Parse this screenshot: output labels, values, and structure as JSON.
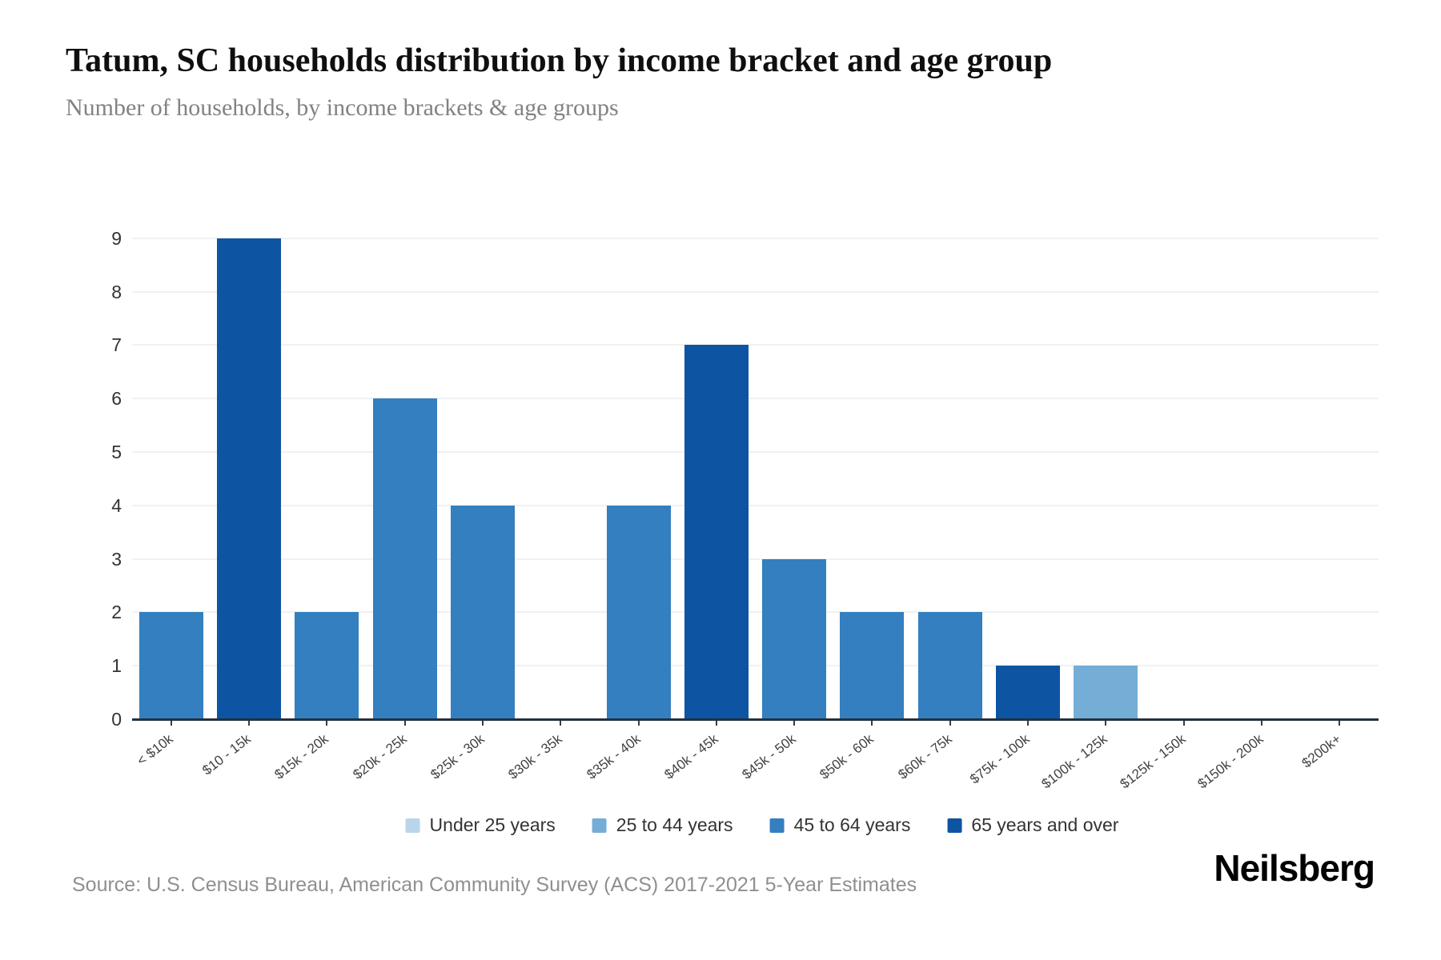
{
  "header": {
    "title": "Tatum, SC households distribution by income bracket and age group",
    "subtitle": "Number of households, by income brackets & age groups"
  },
  "footer": {
    "source": "Source: U.S. Census Bureau, American Community Survey (ACS) 2017-2021 5-Year Estimates",
    "brand": "Neilsberg"
  },
  "colors": {
    "grid": "#f1f1f1",
    "axis": "#22313f",
    "y_tick_text": "#333333",
    "x_tick_text": "#424242",
    "title_text": "#0f0f0f",
    "subtitle_text": "#828282",
    "source_text": "#8f8f8f"
  },
  "chart_data": {
    "type": "bar",
    "title": "Tatum, SC households distribution by income bracket and age group",
    "subtitle": "Number of households, by income brackets & age groups",
    "categories": [
      "< $10k",
      "$10 - 15k",
      "$15k - 20k",
      "$20k - 25k",
      "$25k - 30k",
      "$30k - 35k",
      "$35k - 40k",
      "$40k - 45k",
      "$45k - 50k",
      "$50k - 60k",
      "$60k - 75k",
      "$75k - 100k",
      "$100k - 125k",
      "$125k - 150k",
      "$150k - 200k",
      "$200k+"
    ],
    "series": [
      {
        "name": "Under 25 years",
        "color": "#b9d5ea",
        "values": [
          0,
          0,
          0,
          0,
          0,
          0,
          0,
          0,
          0,
          0,
          0,
          0,
          0,
          0,
          0,
          0
        ]
      },
      {
        "name": "25 to 44 years",
        "color": "#74add5",
        "values": [
          0,
          0,
          0,
          0,
          0,
          0,
          0,
          0,
          0,
          0,
          0,
          0,
          1,
          0,
          0,
          0
        ]
      },
      {
        "name": "45 to 64 years",
        "color": "#337fbf",
        "values": [
          2,
          0,
          2,
          6,
          4,
          0,
          4,
          0,
          3,
          2,
          2,
          0,
          0,
          0,
          0,
          0
        ]
      },
      {
        "name": "65 years and over",
        "color": "#0d55a3",
        "values": [
          0,
          9,
          0,
          0,
          0,
          0,
          0,
          7,
          0,
          0,
          0,
          1,
          0,
          0,
          0,
          0
        ]
      }
    ],
    "ylim": [
      0,
      9
    ],
    "yticks": [
      0,
      1,
      2,
      3,
      4,
      5,
      6,
      7,
      8,
      9
    ],
    "xlabel": "",
    "ylabel": "",
    "grid": "horizontal",
    "legend_position": "bottom"
  }
}
